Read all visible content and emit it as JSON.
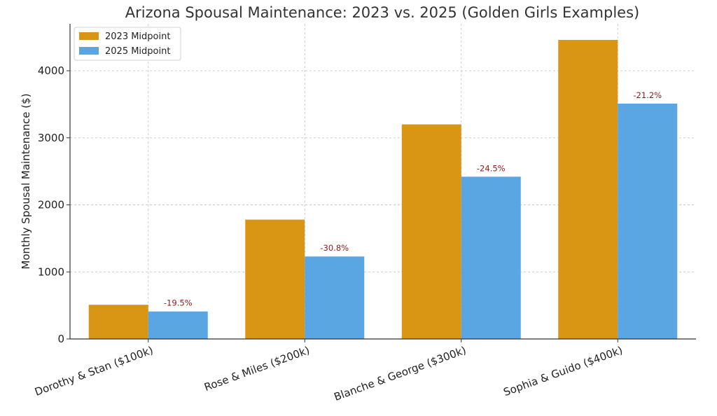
{
  "chart_data": {
    "type": "bar",
    "title": "Arizona Spousal Maintenance: 2023 vs. 2025 (Golden Girls Examples)",
    "xlabel": "",
    "ylabel": "Monthly Spousal Maintenance ($)",
    "ylim": [
      0,
      4700
    ],
    "yticks": [
      0,
      1000,
      2000,
      3000,
      4000
    ],
    "grid": true,
    "legend_position": "top-left",
    "categories": [
      "Dorothy & Stan ($100k)",
      "Rose & Miles ($200k)",
      "Blanche & George ($300k)",
      "Sophia & Guido ($400k)"
    ],
    "series": [
      {
        "name": "2023 Midpoint",
        "color": "#d89614",
        "values": [
          510,
          1780,
          3200,
          4460
        ]
      },
      {
        "name": "2025 Midpoint",
        "color": "#5aa6e3",
        "values": [
          410,
          1230,
          2420,
          3510
        ]
      }
    ],
    "annotations": [
      "-19.5%",
      "-30.8%",
      "-24.5%",
      "-21.2%"
    ]
  }
}
